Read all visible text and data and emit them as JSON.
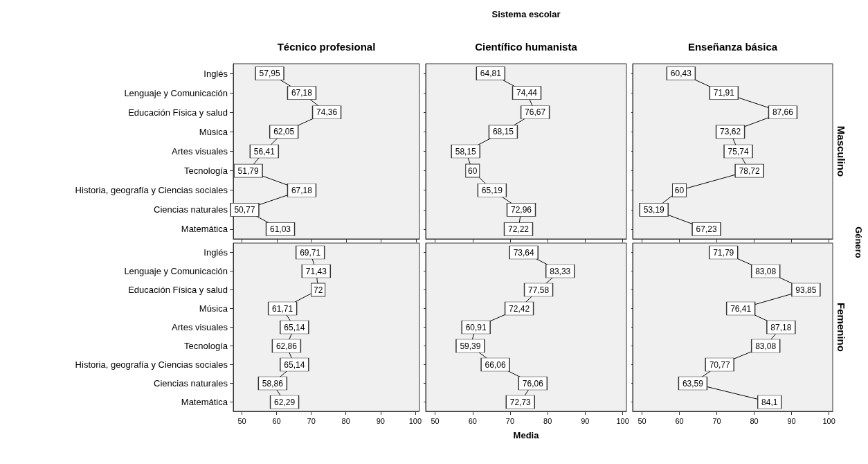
{
  "chart_data": [
    {
      "type": "line",
      "orientation": "horizontal",
      "title": "Técnico profesional",
      "categories": [
        "Inglés",
        "Lenguaje y Comunicación",
        "Educación Física y salud",
        "Música",
        "Artes visuales",
        "Tecnología",
        "Historia, geografía y Ciencias sociales",
        "Ciencias naturales",
        "Matemática"
      ],
      "series": [
        {
          "color": "#000000",
          "values": [
            57.95,
            67.18,
            74.36,
            62.05,
            56.41,
            51.79,
            67.18,
            50.77,
            61.03
          ],
          "value_labels": [
            "57,95",
            "67,18",
            "74,36",
            "62,05",
            "56,41",
            "51,79",
            "67,18",
            "50,77",
            "61,03"
          ]
        }
      ],
      "marker": "square",
      "xlim": [
        47.5,
        101
      ],
      "xticks": [
        50,
        60,
        70,
        80,
        90,
        100
      ],
      "grid": false,
      "tick_labels": "y"
    },
    {
      "type": "line",
      "orientation": "horizontal",
      "title": "Científico humanista",
      "annotations": [
        "Sistema escolar"
      ],
      "categories": [
        null,
        null,
        null,
        null,
        null,
        null,
        null,
        null,
        null
      ],
      "series": [
        {
          "color": "#000000",
          "values": [
            64.81,
            74.44,
            76.67,
            68.15,
            58.15,
            60,
            65.19,
            72.96,
            72.22
          ],
          "value_labels": [
            "64,81",
            "74,44",
            "76,67",
            "68,15",
            "58,15",
            "60",
            "65,19",
            "72,96",
            "72,22"
          ]
        }
      ],
      "marker": "square",
      "xlim": [
        47.5,
        101
      ],
      "xticks": [
        50,
        60,
        70,
        80,
        90,
        100
      ],
      "grid": false,
      "tick_labels": false
    },
    {
      "type": "line",
      "orientation": "horizontal",
      "title": "Enseñanza básica",
      "y2label": "Masculino",
      "annotations": [
        "Género"
      ],
      "categories": [
        null,
        null,
        null,
        null,
        null,
        null,
        null,
        null,
        null
      ],
      "series": [
        {
          "color": "#000000",
          "values": [
            60.43,
            71.91,
            87.66,
            73.62,
            75.74,
            78.72,
            60,
            53.19,
            67.23
          ],
          "value_labels": [
            "60,43",
            "71,91",
            "87,66",
            "73,62",
            "75,74",
            "78,72",
            "60",
            "53,19",
            "67,23"
          ]
        }
      ],
      "marker": "square",
      "xlim": [
        47.5,
        101
      ],
      "xticks": [
        50,
        60,
        70,
        80,
        90,
        100
      ],
      "grid": false,
      "tick_labels": false
    },
    {
      "type": "line",
      "orientation": "horizontal",
      "categories": [
        "Inglés",
        "Lenguaje y Comunicación",
        "Educación Física y salud",
        "Música",
        "Artes visuales",
        "Tecnología",
        "Historia, geografía y Ciencias sociales",
        "Ciencias naturales",
        "Matemática"
      ],
      "series": [
        {
          "color": "#000000",
          "values": [
            69.71,
            71.43,
            72,
            61.71,
            65.14,
            62.86,
            65.14,
            58.86,
            62.29
          ],
          "value_labels": [
            "69,71",
            "71,43",
            "72",
            "61,71",
            "65,14",
            "62,86",
            "65,14",
            "58,86",
            "62,29"
          ]
        }
      ],
      "marker": "square",
      "xlim": [
        47.5,
        101
      ],
      "xticks": [
        50,
        60,
        70,
        80,
        90,
        100
      ],
      "grid": false
    },
    {
      "type": "line",
      "orientation": "horizontal",
      "xlabel": "Media",
      "categories": [
        null,
        null,
        null,
        null,
        null,
        null,
        null,
        null,
        null
      ],
      "series": [
        {
          "color": "#000000",
          "values": [
            73.64,
            83.33,
            77.58,
            72.42,
            60.91,
            59.39,
            66.06,
            76.06,
            72.73
          ],
          "value_labels": [
            "73,64",
            "83,33",
            "77,58",
            "72,42",
            "60,91",
            "59,39",
            "66,06",
            "76,06",
            "72,73"
          ]
        }
      ],
      "marker": "square",
      "xlim": [
        47.5,
        101
      ],
      "xticks": [
        50,
        60,
        70,
        80,
        90,
        100
      ],
      "grid": false,
      "tick_labels": "x"
    },
    {
      "type": "line",
      "orientation": "horizontal",
      "y2label": "Femenino",
      "categories": [
        null,
        null,
        null,
        null,
        null,
        null,
        null,
        null,
        null
      ],
      "series": [
        {
          "color": "#000000",
          "values": [
            71.79,
            83.08,
            93.85,
            76.41,
            87.18,
            83.08,
            70.77,
            63.59,
            84.1
          ],
          "value_labels": [
            "71,79",
            "83,08",
            "93,85",
            "76,41",
            "87,18",
            "83,08",
            "70,77",
            "63,59",
            "84,1"
          ]
        }
      ],
      "marker": "square",
      "xlim": [
        47.5,
        101
      ],
      "xticks": [
        50,
        60,
        70,
        80,
        90,
        100
      ],
      "grid": false,
      "tick_labels": "x"
    }
  ]
}
